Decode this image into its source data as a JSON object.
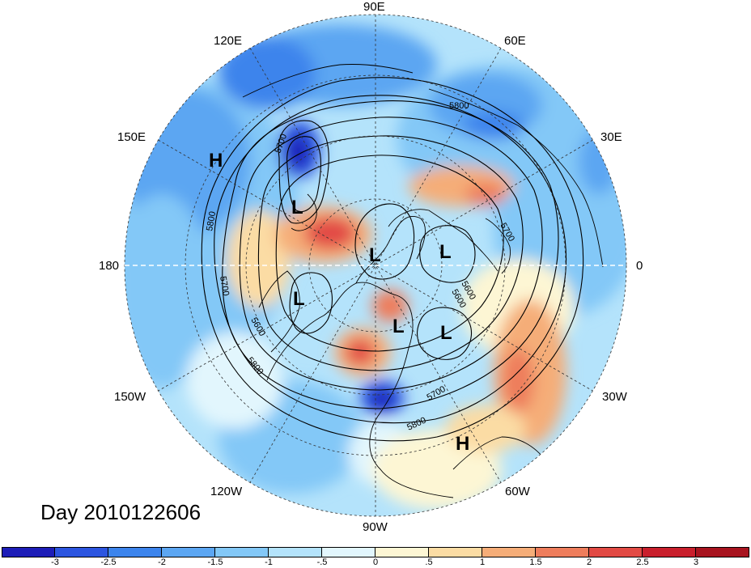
{
  "title": "Day 2010122606",
  "longitude_labels": {
    "lon_90E": "90E",
    "lon_60E": "60E",
    "lon_120E": "120E",
    "lon_30E": "30E",
    "lon_150E": "150E",
    "lon_180": "180",
    "lon_0": "0",
    "lon_150W": "150W",
    "lon_30W": "30W",
    "lon_120W": "120W",
    "lon_60W": "60W",
    "lon_90W": "90W"
  },
  "pressure_centers": [
    {
      "label": "H"
    },
    {
      "label": "L"
    },
    {
      "label": "L"
    },
    {
      "label": "L"
    },
    {
      "label": "L"
    },
    {
      "label": "L"
    },
    {
      "label": "L"
    },
    {
      "label": "H"
    }
  ],
  "contour_labels": [
    "5800",
    "5700",
    "5800",
    "5700",
    "5600",
    "5700",
    "5600",
    "5800",
    "5700",
    "5800",
    "5600"
  ],
  "colorbar": {
    "ticks": [
      "-3",
      "-2.5",
      "-2",
      "-1.5",
      "-1",
      "-.5",
      "0",
      ".5",
      "1",
      "1.5",
      "2",
      "2.5",
      "3"
    ],
    "colors": [
      "#1d1db8",
      "#2c55e0",
      "#3c84ec",
      "#5ca6f2",
      "#83c8f7",
      "#b4e3fb",
      "#e2f6fd",
      "#fdf6d4",
      "#fbdca4",
      "#f5ad78",
      "#ee7d5c",
      "#e24a44",
      "#c91f2c",
      "#a8141f"
    ]
  }
}
